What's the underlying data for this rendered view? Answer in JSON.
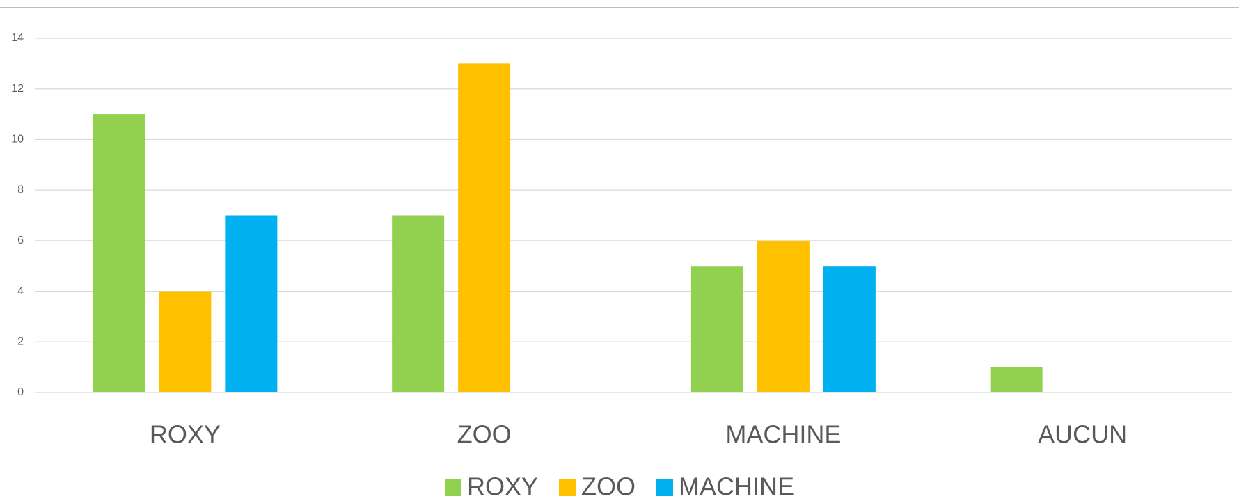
{
  "chart_data": {
    "type": "bar",
    "categories": [
      "ROXY",
      "ZOO",
      "MACHINE",
      "AUCUN"
    ],
    "series": [
      {
        "name": "ROXY",
        "color": "#92d050",
        "values": [
          11,
          7,
          5,
          1
        ]
      },
      {
        "name": "ZOO",
        "color": "#ffc000",
        "values": [
          4,
          13,
          6,
          0
        ]
      },
      {
        "name": "MACHINE",
        "color": "#00b0f0",
        "values": [
          7,
          0,
          5,
          0
        ]
      }
    ],
    "ylim": [
      0,
      14
    ],
    "yticks": [
      0,
      2,
      4,
      6,
      8,
      10,
      12,
      14
    ],
    "grid": true,
    "legend": "bottom"
  }
}
